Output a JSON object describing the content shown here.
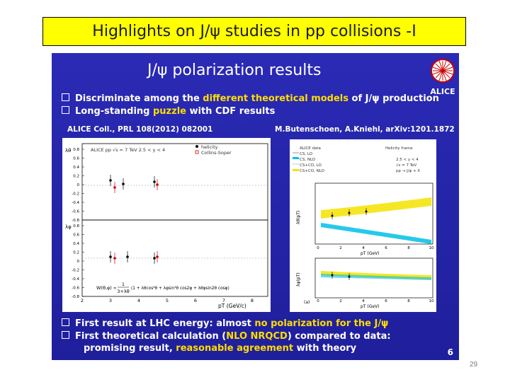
{
  "header": {
    "title": "Highlights on J/ψ studies in pp collisions -I"
  },
  "slide": {
    "title": "J/ψ polarization results",
    "logo_text": "ALICE",
    "bullets_top": [
      {
        "pre": "Discriminate among the ",
        "hl": "different theoretical models",
        "post": " of J/ψ production"
      },
      {
        "pre": "Long-standing ",
        "hl": "puzzle",
        "post": " with CDF results"
      }
    ],
    "ref_left": "ALICE Coll., PRL 108(2012) 082001",
    "ref_right": "M.Butenschoen, A.Kniehl, arXiv:1201.1872",
    "left_plot": {
      "header": "ALICE  pp √s = 7 TeV   2.5 < y < 4",
      "legend": [
        "helicity",
        "Collins-Soper"
      ],
      "ylabel_top": "λθ",
      "ylabel_bottom": "λφ",
      "yticks": [
        "0.8",
        "0.6",
        "0.4",
        "0.2",
        "0",
        "-0.2",
        "-0.4",
        "-0.6",
        "-0.8"
      ],
      "xticks": [
        "2",
        "3",
        "4",
        "5",
        "6",
        "7",
        "8"
      ],
      "xlabel": "pT (GeV/c)",
      "formula_left": "W(θ,φ) ∝",
      "formula_frac_num": "1",
      "formula_frac_den": "3+λθ",
      "formula_rest": "(1 + λθcos²θ + λφsin²θ cos2φ + λθφsin2θ cosφ)"
    },
    "right_plot": {
      "legend": [
        "ALICE data",
        "CS, LO",
        "CS, NLO",
        "CS+CO, LO",
        "CS+CO, NLO"
      ],
      "frame_text": [
        "Helicity frame",
        "2.5 < y < 4",
        "√s = 7 TeV",
        "pp → J/ψ + X"
      ],
      "ylabel_top": "λθ(pT)",
      "ylabel_bottom": "λφ(pT)",
      "xticks": [
        "0",
        "2",
        "4",
        "6",
        "8",
        "10"
      ],
      "xlabel": "pT (GeV)",
      "panel_tag": "(a)"
    },
    "bullets_bottom": [
      {
        "pre": "First result at LHC energy: almost ",
        "hl": "no polarization for the J/ψ",
        "post": ""
      },
      {
        "pre": "First theoretical calculation (",
        "hl": "NLO NRQCD",
        "post": ") compared to data:"
      }
    ],
    "bullet_cont": {
      "pre": "promising result, ",
      "hl": "reasonable agreement",
      "post": " with theory"
    },
    "page_number": "6"
  },
  "footer": {
    "slide_number": "29"
  },
  "colors": {
    "title_bg": "#ffff00",
    "slide_bg": "#2323a8",
    "highlight": "#ffdd00",
    "cyan_band": "#00bfe6",
    "yellow_band": "#f5e300"
  }
}
